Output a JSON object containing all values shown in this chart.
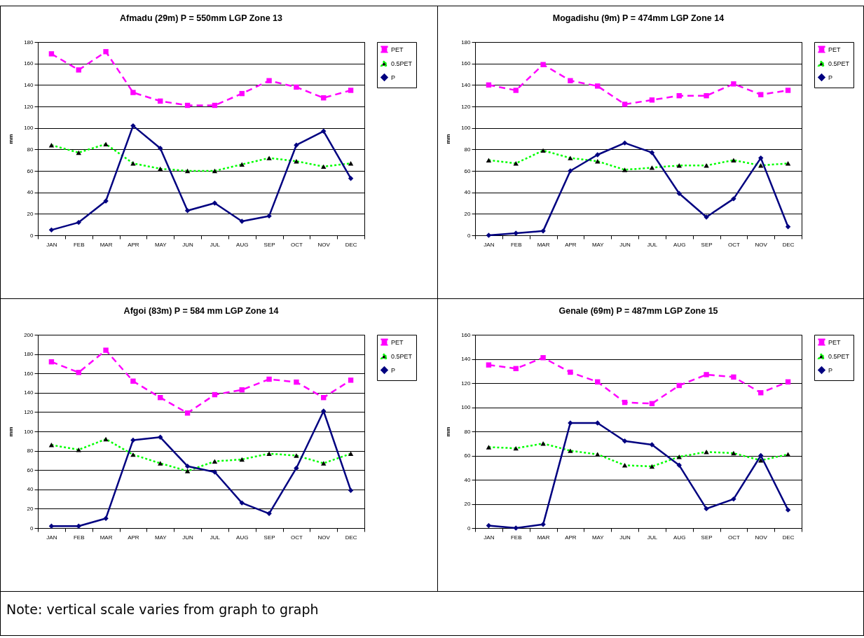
{
  "chart_data": [
    {
      "type": "line",
      "title": "Afmadu (29m)  P = 550mm  LGP Zone 13",
      "ylabel": "mm",
      "categories": [
        "JAN",
        "FEB",
        "MAR",
        "APR",
        "MAY",
        "JUN",
        "JUL",
        "AUG",
        "SEP",
        "OCT",
        "NOV",
        "DEC"
      ],
      "ylim": [
        0,
        180
      ],
      "yticks": [
        0,
        20,
        40,
        60,
        80,
        100,
        120,
        140,
        160,
        180
      ],
      "grid": "y",
      "legend": "right",
      "series": [
        {
          "name": "PET",
          "color": "#ff00ff",
          "marker": "square",
          "line_style": "dashed",
          "values": [
            169,
            154,
            171,
            133,
            125,
            121,
            121,
            132,
            144,
            138,
            128,
            135
          ]
        },
        {
          "name": "0.5PET",
          "color": "#00ff00",
          "marker": "triangle",
          "line_style": "dotted",
          "values": [
            84,
            77,
            85,
            67,
            62,
            60,
            60,
            66,
            72,
            69,
            64,
            67
          ]
        },
        {
          "name": "P",
          "color": "#000080",
          "marker": "diamond",
          "line_style": "solid",
          "values": [
            5,
            12,
            32,
            102,
            81,
            23,
            30,
            13,
            18,
            84,
            97,
            53
          ]
        }
      ]
    },
    {
      "type": "line",
      "title": "Mogadishu (9m)  P = 474mm  LGP Zone 14",
      "ylabel": "mm",
      "categories": [
        "JAN",
        "FEB",
        "MAR",
        "APR",
        "MAY",
        "JUN",
        "JUL",
        "AUG",
        "SEP",
        "OCT",
        "NOV",
        "DEC"
      ],
      "ylim": [
        0,
        180
      ],
      "yticks": [
        0,
        20,
        40,
        60,
        80,
        100,
        120,
        140,
        160,
        180
      ],
      "grid": "y",
      "legend": "right",
      "series": [
        {
          "name": "PET",
          "color": "#ff00ff",
          "marker": "square",
          "line_style": "dashed",
          "values": [
            140,
            135,
            159,
            144,
            139,
            122,
            126,
            130,
            130,
            141,
            131,
            135
          ]
        },
        {
          "name": "0.5PET",
          "color": "#00ff00",
          "marker": "triangle",
          "line_style": "dotted",
          "values": [
            70,
            67,
            79,
            72,
            69,
            61,
            63,
            65,
            65,
            70,
            65,
            67
          ]
        },
        {
          "name": "P",
          "color": "#000080",
          "marker": "diamond",
          "line_style": "solid",
          "values": [
            0,
            2,
            4,
            60,
            75,
            86,
            77,
            39,
            17,
            34,
            72,
            8
          ]
        }
      ]
    },
    {
      "type": "line",
      "title": "Afgoi (83m)  P = 584 mm  LGP Zone 14",
      "ylabel": "mm",
      "categories": [
        "JAN",
        "FEB",
        "MAR",
        "APR",
        "MAY",
        "JUN",
        "JUL",
        "AUG",
        "SEP",
        "OCT",
        "NOV",
        "DEC"
      ],
      "ylim": [
        0,
        200
      ],
      "yticks": [
        0,
        20,
        40,
        60,
        80,
        100,
        120,
        140,
        160,
        180,
        200
      ],
      "grid": "y",
      "legend": "right",
      "annotations": [
        "Note: vertical scale varies from graph to graph"
      ],
      "series": [
        {
          "name": "PET",
          "color": "#ff00ff",
          "marker": "square",
          "line_style": "dashed",
          "values": [
            172,
            161,
            184,
            152,
            135,
            119,
            138,
            143,
            154,
            151,
            135,
            153
          ]
        },
        {
          "name": "0.5PET",
          "color": "#00ff00",
          "marker": "triangle",
          "line_style": "dotted",
          "values": [
            86,
            81,
            92,
            76,
            67,
            59,
            69,
            71,
            77,
            75,
            67,
            77
          ]
        },
        {
          "name": "P",
          "color": "#000080",
          "marker": "diamond",
          "line_style": "solid",
          "values": [
            2,
            2,
            10,
            91,
            94,
            64,
            58,
            26,
            15,
            62,
            121,
            39
          ]
        }
      ]
    },
    {
      "type": "line",
      "title": "Genale (69m)  P = 487mm  LGP Zone 15",
      "ylabel": "mm",
      "categories": [
        "JAN",
        "FEB",
        "MAR",
        "APR",
        "MAY",
        "JUN",
        "JUL",
        "AUG",
        "SEP",
        "OCT",
        "NOV",
        "DEC"
      ],
      "ylim": [
        0,
        160
      ],
      "yticks": [
        0,
        20,
        40,
        60,
        80,
        100,
        120,
        140,
        160
      ],
      "grid": "y",
      "legend": "right",
      "series": [
        {
          "name": "PET",
          "color": "#ff00ff",
          "marker": "square",
          "line_style": "dashed",
          "values": [
            135,
            132,
            141,
            129,
            121,
            104,
            103,
            118,
            127,
            125,
            112,
            121
          ]
        },
        {
          "name": "0.5PET",
          "color": "#00ff00",
          "marker": "triangle",
          "line_style": "dotted",
          "values": [
            67,
            66,
            70,
            64,
            61,
            52,
            51,
            59,
            63,
            62,
            56,
            61
          ]
        },
        {
          "name": "P",
          "color": "#000080",
          "marker": "diamond",
          "line_style": "solid",
          "values": [
            2,
            0,
            3,
            87,
            87,
            72,
            69,
            52,
            16,
            24,
            60,
            15
          ]
        }
      ]
    }
  ]
}
